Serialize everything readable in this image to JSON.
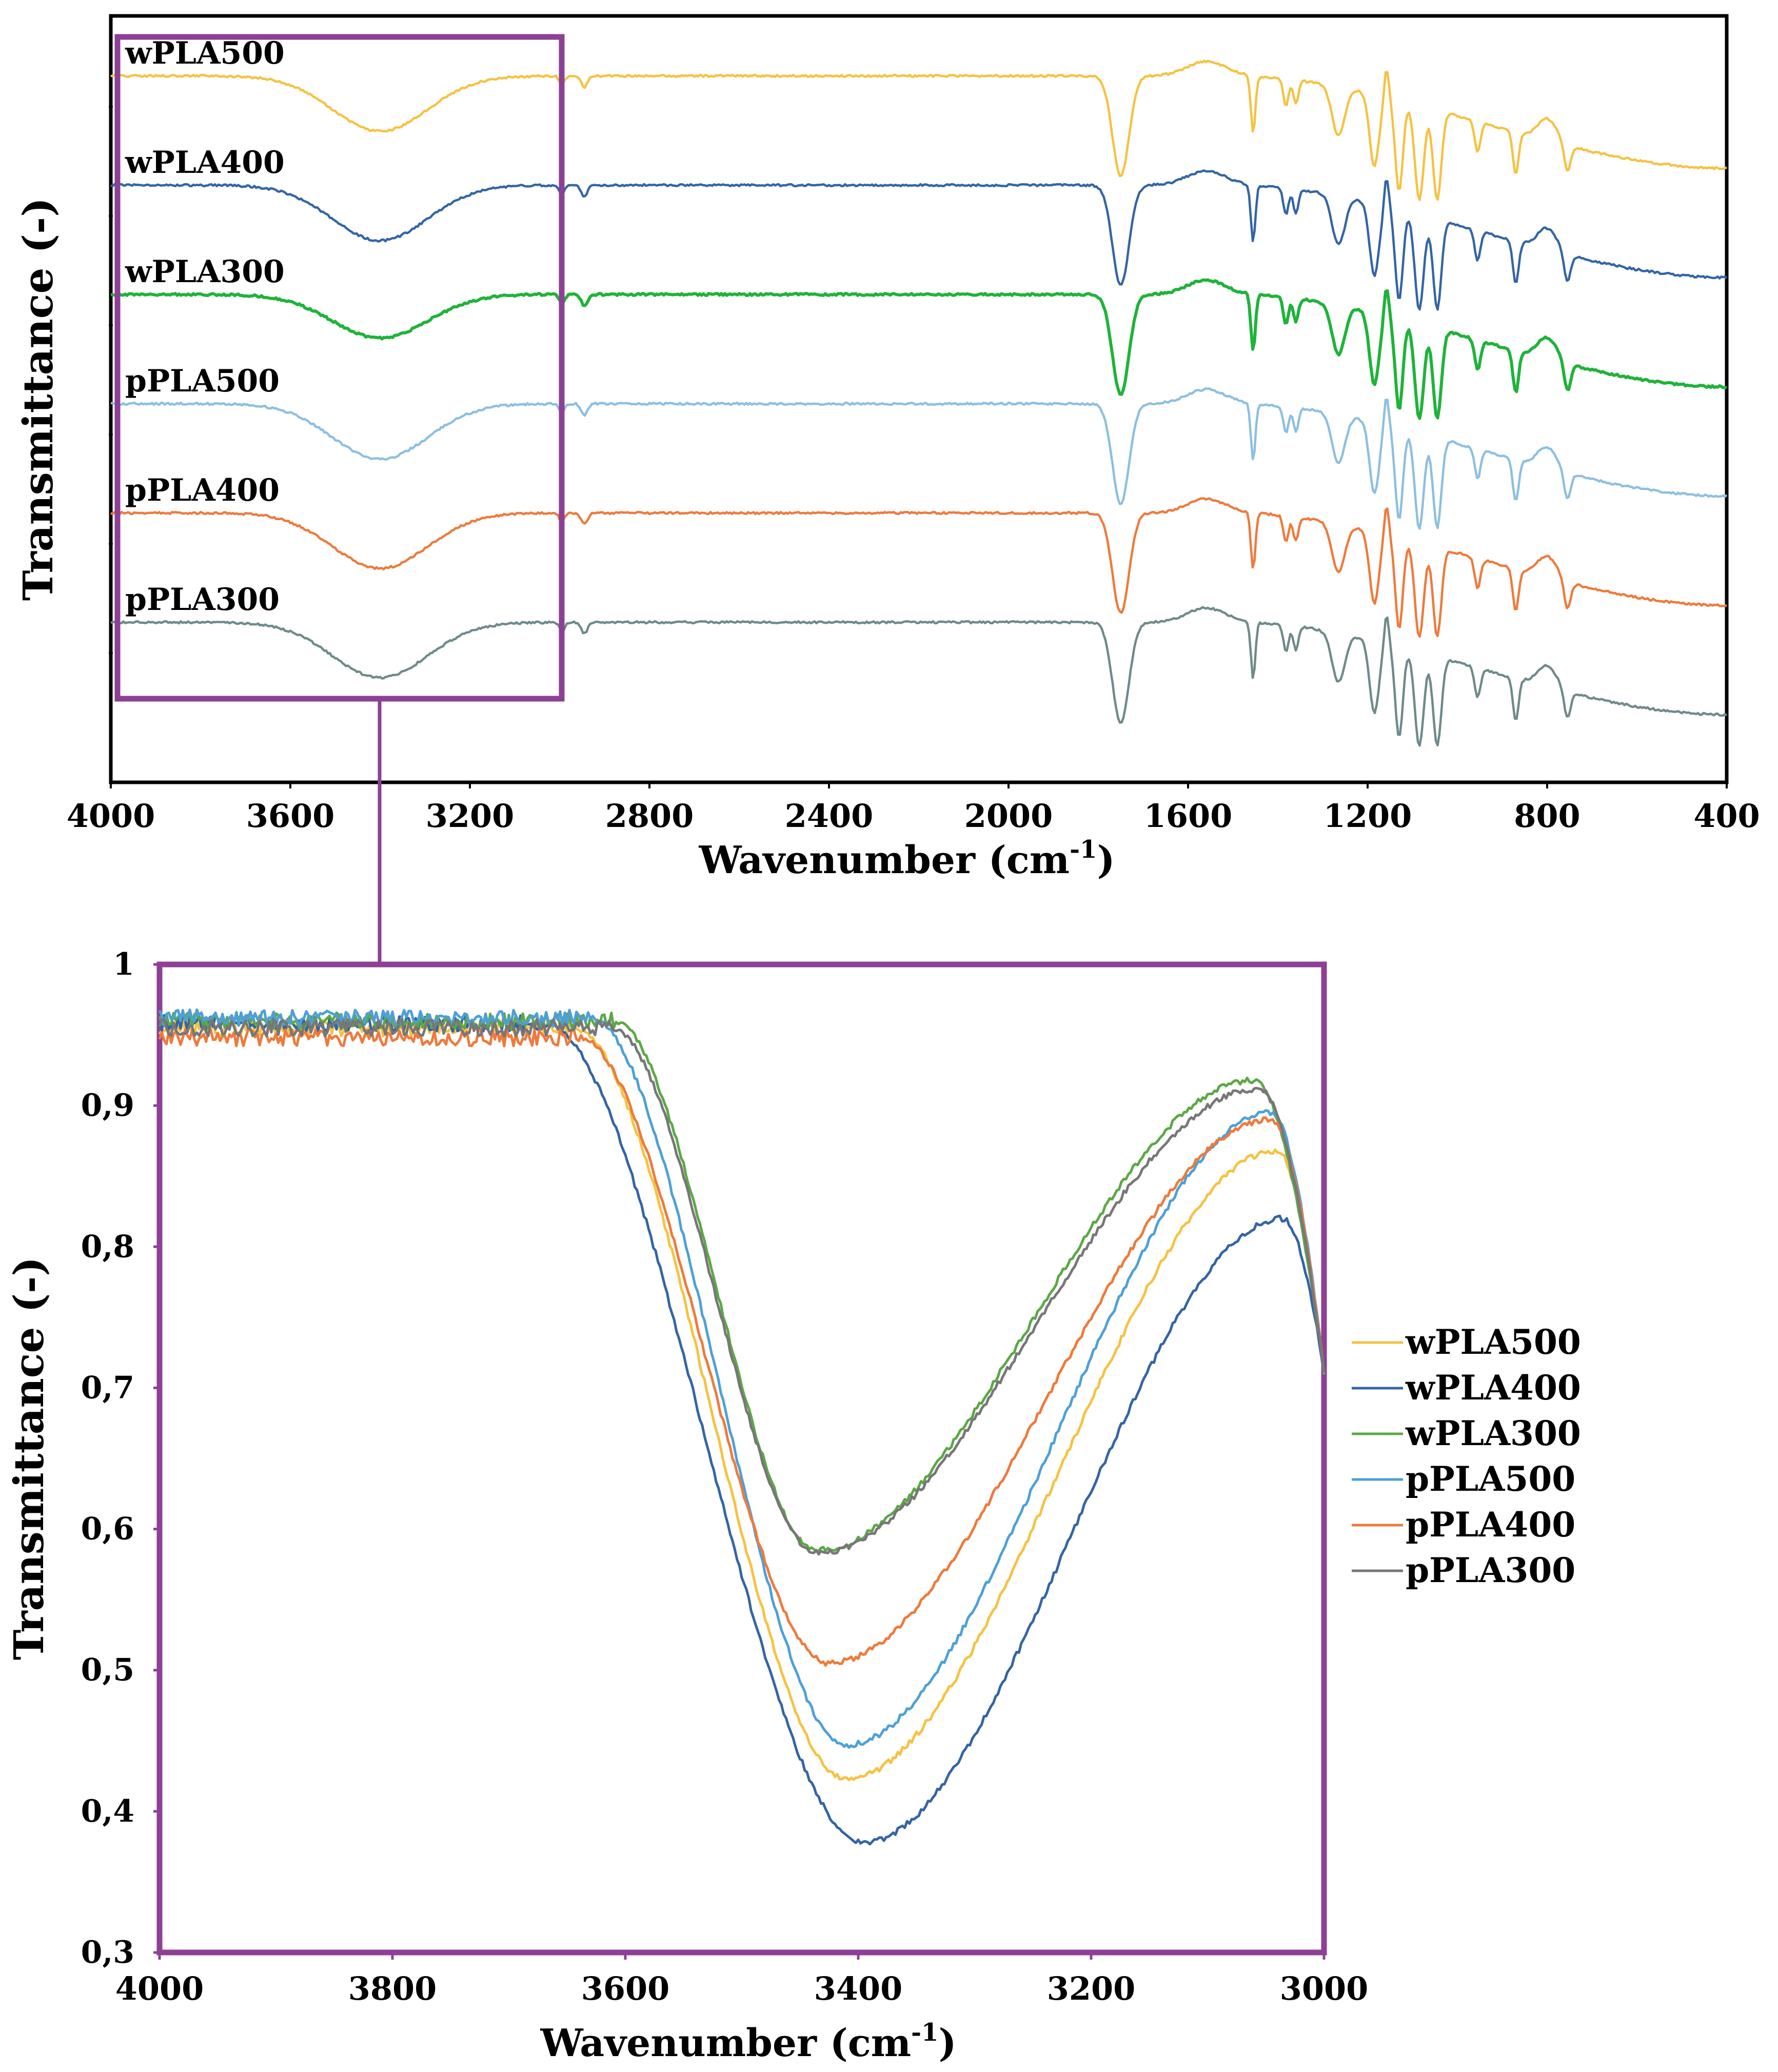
{
  "chart_data": [
    {
      "type": "line",
      "id": "overview",
      "ylabel": "Transmittance (-)",
      "xlabel_main": "Wavenumber (cm",
      "xlabel_sup": "-1",
      "xlabel_close": ")",
      "xlim": [
        4000,
        400
      ],
      "x_ticks": [
        "4000",
        "3600",
        "3200",
        "2800",
        "2400",
        "2000",
        "1600",
        "1200",
        "800",
        "400"
      ],
      "x_tick_values": [
        4000,
        3600,
        3200,
        2800,
        2400,
        2000,
        1600,
        1200,
        800,
        400
      ],
      "series": [
        {
          "name": "wPLA500",
          "color": "#F5C242",
          "offset": 0
        },
        {
          "name": "wPLA400",
          "color": "#3465A4",
          "offset": 1
        },
        {
          "name": "wPLA300",
          "color": "#1FB33A",
          "offset": 2
        },
        {
          "name": "pPLA500",
          "color": "#8DBFE0",
          "offset": 3
        },
        {
          "name": "pPLA400",
          "color": "#EE7A3C",
          "offset": 4
        },
        {
          "name": "pPLA300",
          "color": "#6F8A8A",
          "offset": 5
        }
      ],
      "peak_positions_cm-1": [
        3400,
        2995,
        2945,
        1750,
        1455,
        1382,
        1360,
        1265,
        1185,
        1130,
        1085,
        1045,
        955,
        870,
        755
      ]
    },
    {
      "type": "line",
      "id": "zoom",
      "ylabel": "Transmittance (-)",
      "xlabel_main": "Wavenumber (cm",
      "xlabel_sup": "-1",
      "xlabel_close": ")",
      "xlim": [
        4000,
        3000
      ],
      "ylim": [
        0.3,
        1.0
      ],
      "x_ticks": [
        "4000",
        "3800",
        "3600",
        "3400",
        "3200",
        "3000"
      ],
      "x_tick_values": [
        4000,
        3800,
        3600,
        3400,
        3200,
        3000
      ],
      "y_ticks": [
        "1",
        "0,9",
        "0,8",
        "0,7",
        "0,6",
        "0,5",
        "0,4",
        "0,3"
      ],
      "y_tick_values": [
        1.0,
        0.9,
        0.8,
        0.7,
        0.6,
        0.5,
        0.4,
        0.3
      ],
      "legend_position": "right",
      "series": [
        {
          "name": "wPLA500",
          "color": "#F5C242",
          "plateau": 0.955,
          "x_min": 3410,
          "y_min": 0.423,
          "x_peak": 3040,
          "y_peak": 0.868,
          "edge_x": 3645,
          "y_end": 0.71
        },
        {
          "name": "wPLA400",
          "color": "#3465A4",
          "plateau": 0.958,
          "x_min": 3395,
          "y_min": 0.378,
          "x_peak": 3035,
          "y_peak": 0.82,
          "edge_x": 3670,
          "y_end": 0.71
        },
        {
          "name": "wPLA300",
          "color": "#5BA846",
          "plateau": 0.96,
          "x_min": 3435,
          "y_min": 0.585,
          "x_peak": 3060,
          "y_peak": 0.918,
          "edge_x": 3610,
          "y_end": 0.71
        },
        {
          "name": "pPLA500",
          "color": "#4EA0D6",
          "plateau": 0.962,
          "x_min": 3410,
          "y_min": 0.447,
          "x_peak": 3045,
          "y_peak": 0.895,
          "edge_x": 3630,
          "y_end": 0.71
        },
        {
          "name": "pPLA400",
          "color": "#EE7A3C",
          "plateau": 0.948,
          "x_min": 3425,
          "y_min": 0.505,
          "x_peak": 3045,
          "y_peak": 0.89,
          "edge_x": 3640,
          "y_end": 0.71
        },
        {
          "name": "pPLA300",
          "color": "#777777",
          "plateau": 0.955,
          "x_min": 3435,
          "y_min": 0.583,
          "x_peak": 3055,
          "y_peak": 0.912,
          "edge_x": 3612,
          "y_end": 0.71
        }
      ]
    }
  ]
}
